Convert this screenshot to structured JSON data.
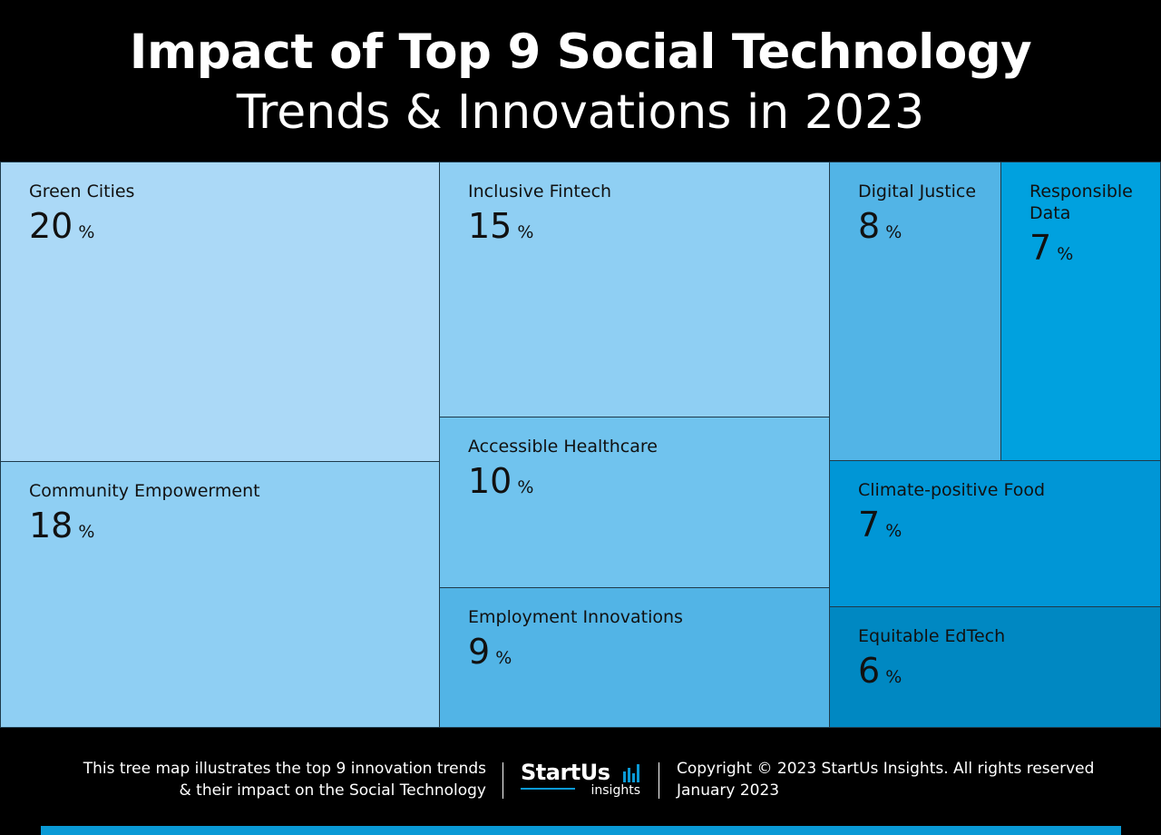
{
  "header": {
    "title_line1": "Impact of Top 9 Social Technology",
    "title_line2": "Trends & Innovations in 2023"
  },
  "chart_data": {
    "type": "treemap",
    "unit": "%",
    "items": [
      {
        "label": "Green Cities",
        "value": 20,
        "color": "#abd9f7"
      },
      {
        "label": "Community Empowerment",
        "value": 18,
        "color": "#8fcff3"
      },
      {
        "label": "Inclusive Fintech",
        "value": 15,
        "color": "#8fcff3"
      },
      {
        "label": "Accessible Healthcare",
        "value": 10,
        "color": "#70c3ee"
      },
      {
        "label": "Employment Innovations",
        "value": 9,
        "color": "#52b4e6"
      },
      {
        "label": "Digital Justice",
        "value": 8,
        "color": "#52b4e6"
      },
      {
        "label": "Responsible Data",
        "value": 7,
        "color": "#00a1df"
      },
      {
        "label": "Climate-positive Food",
        "value": 7,
        "color": "#0096d6"
      },
      {
        "label": "Equitable EdTech",
        "value": 6,
        "color": "#0088c2"
      }
    ]
  },
  "footer": {
    "description_line1": "This tree map illustrates the top 9 innovation trends",
    "description_line2": "& their impact on the Social Technology",
    "logo_main": "StartUs",
    "logo_sub": "insights",
    "copyright": "Copyright © 2023 StartUs Insights. All rights reserved",
    "date": "January 2023",
    "accent_color": "#0a9ad6"
  }
}
